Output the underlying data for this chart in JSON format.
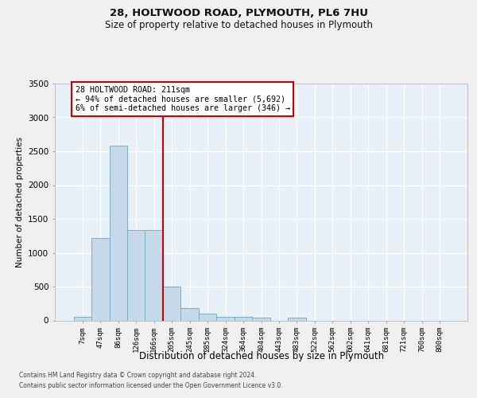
{
  "title1": "28, HOLTWOOD ROAD, PLYMOUTH, PL6 7HU",
  "title2": "Size of property relative to detached houses in Plymouth",
  "xlabel": "Distribution of detached houses by size in Plymouth",
  "ylabel": "Number of detached properties",
  "categories": [
    "7sqm",
    "47sqm",
    "86sqm",
    "126sqm",
    "166sqm",
    "205sqm",
    "245sqm",
    "285sqm",
    "324sqm",
    "364sqm",
    "404sqm",
    "443sqm",
    "483sqm",
    "522sqm",
    "562sqm",
    "602sqm",
    "641sqm",
    "681sqm",
    "721sqm",
    "760sqm",
    "800sqm"
  ],
  "bar_values": [
    50,
    1220,
    2580,
    1340,
    1330,
    500,
    185,
    100,
    50,
    50,
    40,
    0,
    40,
    0,
    0,
    0,
    0,
    0,
    0,
    0,
    0
  ],
  "bar_color": "#c6d9ea",
  "bar_edgecolor": "#7aafc8",
  "vline_x_index": 4.5,
  "vline_color": "#cc0000",
  "annotation_text": "28 HOLTWOOD ROAD: 211sqm\n← 94% of detached houses are smaller (5,692)\n6% of semi-detached houses are larger (346) →",
  "annotation_box_edgecolor": "#cc0000",
  "ylim": [
    0,
    3500
  ],
  "yticks": [
    0,
    500,
    1000,
    1500,
    2000,
    2500,
    3000,
    3500
  ],
  "footer1": "Contains HM Land Registry data © Crown copyright and database right 2024.",
  "footer2": "Contains public sector information licensed under the Open Government Licence v3.0.",
  "bg_color": "#e8f0f8",
  "grid_color": "#ffffff",
  "fig_bg": "#f0f0f0"
}
